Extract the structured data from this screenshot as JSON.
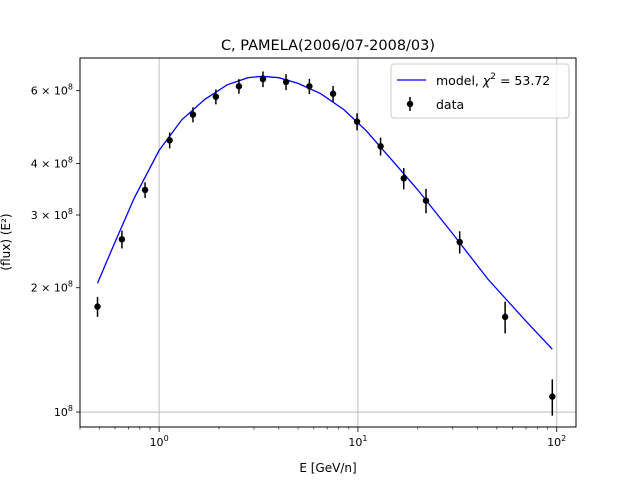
{
  "chart_data": {
    "type": "scatter",
    "title": "C, PAMELA(2006/07-2008/03)",
    "xlabel": "E [GeV/n]",
    "ylabel": "(flux)  (E²)",
    "xscale": "log",
    "yscale": "log",
    "xlim": [
      0.4,
      125
    ],
    "ylim": [
      92000000,
      720000000
    ],
    "grid": "major decades only",
    "legend_position": "top-right",
    "x_ticks": [
      {
        "value": 1,
        "base": "10",
        "exp": "0"
      },
      {
        "value": 10,
        "base": "10",
        "exp": "1"
      },
      {
        "value": 100,
        "base": "10",
        "exp": "2"
      }
    ],
    "y_ticks": [
      {
        "value": 100000000,
        "mant": "",
        "base": "10",
        "exp": "8"
      },
      {
        "value": 200000000,
        "mant": "2 × ",
        "base": "10",
        "exp": "8"
      },
      {
        "value": 300000000,
        "mant": "3 × ",
        "base": "10",
        "exp": "8"
      },
      {
        "value": 400000000,
        "mant": "4 × ",
        "base": "10",
        "exp": "8"
      },
      {
        "value": 600000000,
        "mant": "6 × ",
        "base": "10",
        "exp": "8"
      }
    ],
    "series": [
      {
        "name": "model, χ² = 53.72",
        "legend_parts": {
          "prefix": "model, ",
          "chi": "χ",
          "sup": "2",
          "suffix": " = 53.72"
        },
        "style": "line",
        "color": "#0000ff",
        "x": [
          0.49,
          0.6,
          0.75,
          1.0,
          1.3,
          1.7,
          2.2,
          2.8,
          3.3,
          4.0,
          5.0,
          6.5,
          8.5,
          11,
          15,
          20,
          30,
          45,
          70,
          95
        ],
        "y": [
          205000000,
          258000000,
          330000000,
          430000000,
          510000000,
          572000000,
          620000000,
          645000000,
          650000000,
          645000000,
          625000000,
          590000000,
          540000000,
          480000000,
          405000000,
          345000000,
          270000000,
          210000000,
          166000000,
          142000000
        ]
      },
      {
        "name": "data",
        "style": "errorbar",
        "color": "#000000",
        "x": [
          0.49,
          0.65,
          0.85,
          1.13,
          1.48,
          1.93,
          2.52,
          3.33,
          4.35,
          5.7,
          7.5,
          9.9,
          13,
          17,
          22,
          32.5,
          55,
          95
        ],
        "y": [
          180000000,
          262000000,
          345000000,
          455000000,
          525000000,
          580000000,
          615000000,
          640000000,
          630000000,
          615000000,
          590000000,
          505000000,
          440000000,
          368000000,
          325000000,
          258000000,
          170000000,
          109000000
        ],
        "yerr": [
          10000000,
          13000000,
          15000000,
          20000000,
          22000000,
          24000000,
          25000000,
          28000000,
          28000000,
          26000000,
          26000000,
          24000000,
          22000000,
          22000000,
          22000000,
          16000000,
          15000000,
          11000000
        ]
      }
    ]
  }
}
